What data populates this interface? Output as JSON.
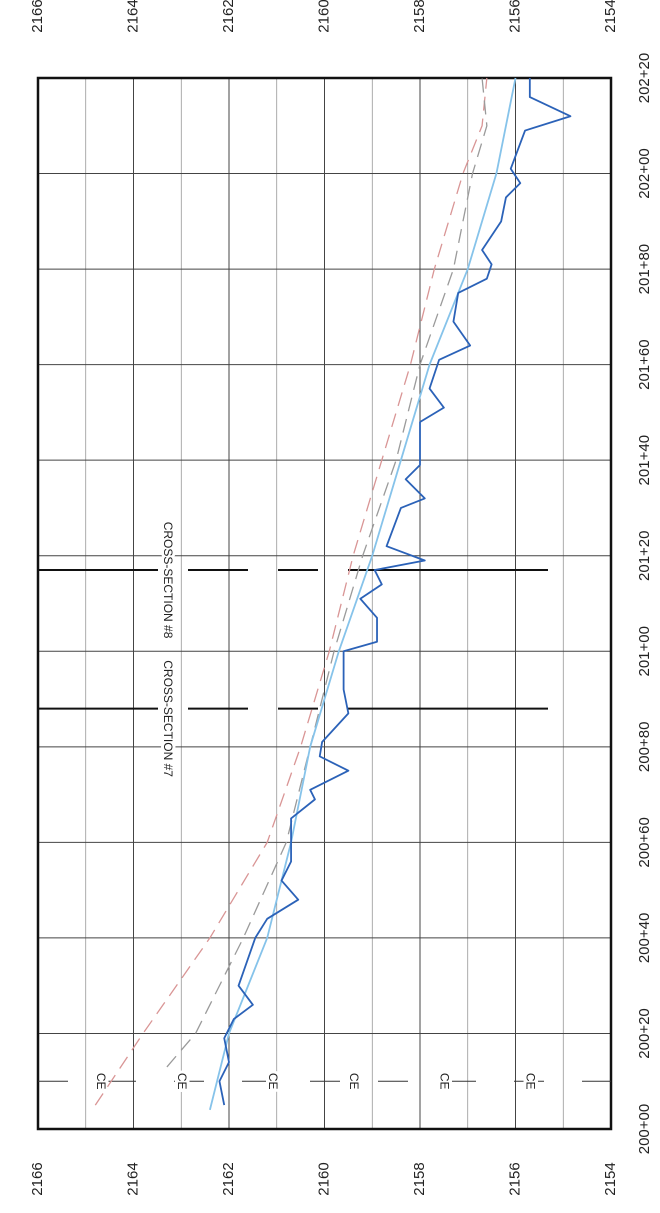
{
  "chart_data": {
    "type": "line",
    "xlim": [
      20000,
      20220
    ],
    "xticks": [
      {
        "value": 20000,
        "label": "200+00"
      },
      {
        "value": 20020,
        "label": "200+20"
      },
      {
        "value": 20040,
        "label": "200+40"
      },
      {
        "value": 20060,
        "label": "200+60"
      },
      {
        "value": 20080,
        "label": "200+80"
      },
      {
        "value": 20100,
        "label": "201+00"
      },
      {
        "value": 20120,
        "label": "201+20"
      },
      {
        "value": 20140,
        "label": "201+40"
      },
      {
        "value": 20160,
        "label": "201+60"
      },
      {
        "value": 20180,
        "label": "201+80"
      },
      {
        "value": 20200,
        "label": "202+00"
      },
      {
        "value": 20220,
        "label": "202+20"
      }
    ],
    "ylim": [
      2154,
      2166
    ],
    "yticks": [
      2154,
      2156,
      2158,
      2160,
      2162,
      2164,
      2166
    ],
    "minor_yticks": [
      2155,
      2157,
      2159,
      2161,
      2163,
      2165
    ],
    "grid": true,
    "series": [
      {
        "color": "#d99595",
        "dashed": true,
        "x": [
          20005,
          20020,
          20040,
          20060,
          20080,
          20100,
          20120,
          20140,
          20160,
          20180,
          20200,
          20210,
          20220
        ],
        "values": [
          2164.8,
          2163.8,
          2162.4,
          2161.2,
          2160.5,
          2159.9,
          2159.4,
          2158.8,
          2158.2,
          2157.7,
          2157.1,
          2156.7,
          2156.6
        ]
      },
      {
        "color": "#9a9a9a",
        "dashed": true,
        "x": [
          20013,
          20020,
          20040,
          20060,
          20080,
          20100,
          20120,
          20140,
          20160,
          20180,
          20200,
          20210,
          20220
        ],
        "values": [
          2163.3,
          2162.7,
          2161.7,
          2160.8,
          2160.3,
          2159.8,
          2159.2,
          2158.5,
          2158.0,
          2157.3,
          2156.9,
          2156.6,
          2156.7
        ]
      },
      {
        "color": "#86c3ea",
        "dashed": false,
        "x": [
          20004,
          20020,
          20040,
          20060,
          20080,
          20100,
          20120,
          20140,
          20160,
          20180,
          20200,
          20220
        ],
        "values": [
          2162.4,
          2162.0,
          2161.2,
          2160.7,
          2160.3,
          2159.7,
          2159.0,
          2158.4,
          2157.8,
          2157.0,
          2156.4,
          2156.0
        ]
      },
      {
        "color": "#2b62b8",
        "dashed": false,
        "x": [
          20005,
          20010,
          20014,
          20019,
          20023,
          20026,
          20030,
          20040,
          20044,
          20048,
          20052,
          20056,
          20060,
          20065,
          20069,
          20071,
          20075,
          20078,
          20081,
          20087,
          20092,
          20100,
          20102,
          20107,
          20111,
          20114,
          20117,
          20119,
          20122,
          20130,
          20132,
          20136,
          20139,
          20148,
          20151,
          20155,
          20161,
          20164,
          20169,
          20175,
          20178,
          20181,
          20184,
          20190,
          20195,
          20198,
          20201,
          20209,
          20212,
          20216,
          20220
        ],
        "values": [
          2162.1,
          2162.2,
          2162.0,
          2162.1,
          2161.9,
          2161.5,
          2161.8,
          2161.45,
          2161.2,
          2160.55,
          2160.9,
          2160.7,
          2160.7,
          2160.7,
          2160.2,
          2160.3,
          2159.5,
          2160.1,
          2160.05,
          2159.5,
          2159.6,
          2159.6,
          2158.9,
          2158.9,
          2159.25,
          2158.8,
          2158.95,
          2157.9,
          2158.7,
          2158.4,
          2157.9,
          2158.3,
          2158.0,
          2158.0,
          2157.5,
          2157.8,
          2157.6,
          2156.95,
          2157.3,
          2157.2,
          2156.6,
          2156.5,
          2156.7,
          2156.3,
          2156.2,
          2155.9,
          2156.1,
          2155.8,
          2154.85,
          2155.7,
          2155.7
        ]
      }
    ],
    "annotations": [
      {
        "text": "CROSS-SECTION #7",
        "x": 20088,
        "y": 2163.3
      },
      {
        "text": "CROSS-SECTION #8",
        "x": 20117,
        "y": 2163.3
      },
      {
        "text": "CE",
        "x": 20010,
        "y": 2164.7
      },
      {
        "text": "CE",
        "x": 20010,
        "y": 2163.0
      },
      {
        "text": "CE",
        "x": 20010,
        "y": 2161.1
      },
      {
        "text": "CE",
        "x": 20010,
        "y": 2159.4
      },
      {
        "text": "CE",
        "x": 20010,
        "y": 2157.5
      },
      {
        "text": "CE",
        "x": 20010,
        "y": 2155.7
      }
    ]
  }
}
